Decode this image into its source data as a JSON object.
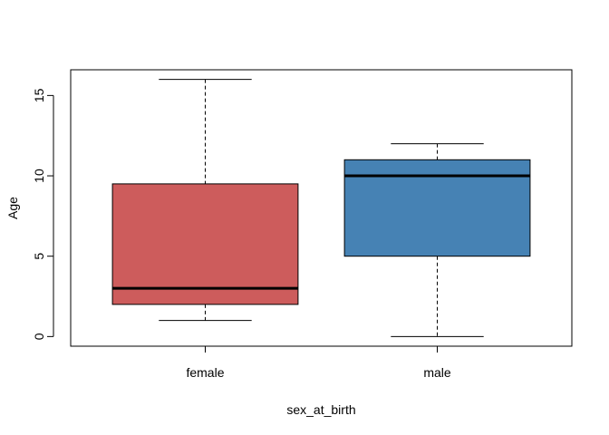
{
  "chart_data": {
    "type": "boxplot",
    "title": "",
    "xlabel": "sex_at_birth",
    "ylabel": "Age",
    "ylim": [
      -0.6,
      16.6
    ],
    "yticks": [
      0,
      5,
      10,
      15
    ],
    "grid": false,
    "categories": [
      "female",
      "male"
    ],
    "boxes": [
      {
        "category": "female",
        "whisker_low": 1,
        "q1": 2,
        "median": 3,
        "q3": 9.5,
        "whisker_high": 16,
        "color": "#CD5C5C"
      },
      {
        "category": "male",
        "whisker_low": 0,
        "q1": 5,
        "median": 10,
        "q3": 11,
        "whisker_high": 12,
        "color": "#4682B4"
      }
    ]
  }
}
